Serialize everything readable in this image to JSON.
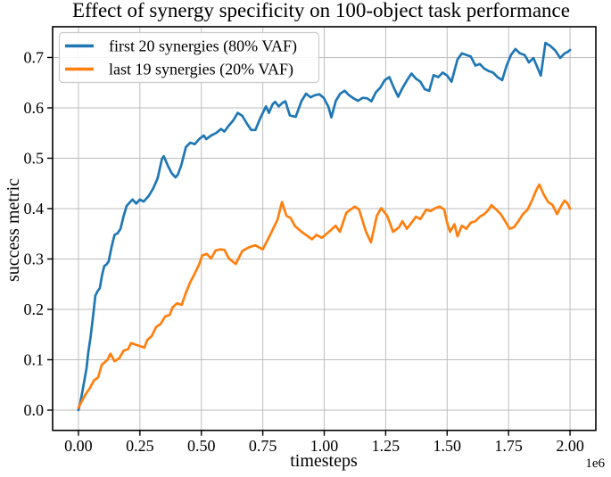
{
  "chart_data": {
    "type": "line",
    "title": "Effect of synergy specificity on 100-object task performance",
    "xlabel": "timesteps",
    "ylabel": "success metric",
    "x_offset_label": "1e6",
    "x_units": "timesteps (values shown in multiples of 1e6)",
    "xlim": [
      -0.105,
      2.105
    ],
    "ylim": [
      -0.0402,
      0.761
    ],
    "grid": true,
    "legend_position": "upper left",
    "colors": {
      "series_blue": "#1f77b4",
      "series_orange": "#ff7f0e",
      "grid": "#bdbdbd",
      "spine": "#000000",
      "legend_border": "#cccccc",
      "background": "#ffffff"
    },
    "xticks": [
      0,
      0.25,
      0.5,
      0.75,
      1.0,
      1.25,
      1.5,
      1.75,
      2.0
    ],
    "xtick_labels": [
      "0.00",
      "0.25",
      "0.50",
      "0.75",
      "1.00",
      "1.25",
      "1.50",
      "1.75",
      "2.00"
    ],
    "yticks": [
      0,
      0.1,
      0.2,
      0.3,
      0.4,
      0.5,
      0.6,
      0.7
    ],
    "ytick_labels": [
      "0.0",
      "0.1",
      "0.2",
      "0.3",
      "0.4",
      "0.5",
      "0.6",
      "0.7"
    ],
    "series": [
      {
        "name": "first 20 synergies (80% VAF)",
        "color": "#1f77b4",
        "x": [
          0,
          0.008,
          0.02,
          0.033,
          0.04,
          0.05,
          0.06,
          0.069,
          0.078,
          0.087,
          0.096,
          0.105,
          0.114,
          0.123,
          0.135,
          0.147,
          0.159,
          0.171,
          0.183,
          0.196,
          0.208,
          0.22,
          0.235,
          0.25,
          0.265,
          0.286,
          0.304,
          0.322,
          0.34,
          0.347,
          0.365,
          0.38,
          0.395,
          0.405,
          0.419,
          0.437,
          0.455,
          0.473,
          0.491,
          0.51,
          0.52,
          0.54,
          0.56,
          0.58,
          0.594,
          0.612,
          0.63,
          0.648,
          0.667,
          0.685,
          0.703,
          0.72,
          0.74,
          0.763,
          0.775,
          0.79,
          0.8,
          0.815,
          0.83,
          0.842,
          0.86,
          0.884,
          0.908,
          0.926,
          0.944,
          0.962,
          0.98,
          0.998,
          1.017,
          1.029,
          1.047,
          1.065,
          1.083,
          1.101,
          1.119,
          1.137,
          1.156,
          1.174,
          1.192,
          1.21,
          1.228,
          1.246,
          1.265,
          1.283,
          1.301,
          1.319,
          1.337,
          1.355,
          1.373,
          1.391,
          1.409,
          1.427,
          1.445,
          1.464,
          1.482,
          1.5,
          1.518,
          1.542,
          1.56,
          1.578,
          1.596,
          1.615,
          1.633,
          1.651,
          1.669,
          1.687,
          1.705,
          1.724,
          1.742,
          1.76,
          1.778,
          1.796,
          1.815,
          1.833,
          1.851,
          1.869,
          1.881,
          1.9,
          1.92,
          1.94,
          1.96,
          1.978,
          1.99,
          2.0
        ],
        "y": [
          0,
          0.015,
          0.047,
          0.083,
          0.115,
          0.147,
          0.189,
          0.227,
          0.236,
          0.242,
          0.268,
          0.286,
          0.289,
          0.295,
          0.324,
          0.348,
          0.351,
          0.36,
          0.384,
          0.405,
          0.412,
          0.418,
          0.41,
          0.418,
          0.414,
          0.425,
          0.44,
          0.46,
          0.499,
          0.504,
          0.484,
          0.47,
          0.462,
          0.468,
          0.487,
          0.522,
          0.531,
          0.528,
          0.538,
          0.545,
          0.538,
          0.545,
          0.55,
          0.558,
          0.553,
          0.565,
          0.575,
          0.59,
          0.584,
          0.569,
          0.556,
          0.556,
          0.58,
          0.603,
          0.59,
          0.607,
          0.612,
          0.603,
          0.61,
          0.613,
          0.585,
          0.582,
          0.614,
          0.628,
          0.621,
          0.625,
          0.627,
          0.62,
          0.602,
          0.581,
          0.614,
          0.628,
          0.634,
          0.625,
          0.619,
          0.614,
          0.62,
          0.619,
          0.613,
          0.631,
          0.64,
          0.655,
          0.661,
          0.64,
          0.622,
          0.64,
          0.655,
          0.668,
          0.658,
          0.652,
          0.637,
          0.634,
          0.665,
          0.661,
          0.67,
          0.664,
          0.652,
          0.696,
          0.708,
          0.705,
          0.702,
          0.684,
          0.687,
          0.678,
          0.673,
          0.67,
          0.661,
          0.655,
          0.684,
          0.705,
          0.717,
          0.708,
          0.705,
          0.69,
          0.699,
          0.678,
          0.664,
          0.729,
          0.723,
          0.714,
          0.699,
          0.708,
          0.711,
          0.715
        ]
      },
      {
        "name": "last 19 synergies (20% VAF)",
        "color": "#ff7f0e",
        "x": [
          0,
          0.008,
          0.027,
          0.047,
          0.063,
          0.08,
          0.095,
          0.118,
          0.13,
          0.147,
          0.166,
          0.184,
          0.202,
          0.214,
          0.232,
          0.25,
          0.268,
          0.28,
          0.298,
          0.316,
          0.334,
          0.353,
          0.371,
          0.383,
          0.401,
          0.42,
          0.437,
          0.455,
          0.473,
          0.491,
          0.504,
          0.522,
          0.54,
          0.558,
          0.576,
          0.594,
          0.612,
          0.64,
          0.667,
          0.697,
          0.72,
          0.75,
          0.78,
          0.81,
          0.828,
          0.846,
          0.864,
          0.88,
          0.905,
          0.925,
          0.95,
          0.968,
          0.99,
          1.01,
          1.046,
          1.064,
          1.09,
          1.124,
          1.142,
          1.17,
          1.19,
          1.214,
          1.232,
          1.256,
          1.28,
          1.304,
          1.318,
          1.336,
          1.355,
          1.373,
          1.391,
          1.415,
          1.433,
          1.452,
          1.47,
          1.488,
          1.5,
          1.512,
          1.53,
          1.542,
          1.56,
          1.578,
          1.596,
          1.615,
          1.633,
          1.651,
          1.669,
          1.68,
          1.7,
          1.718,
          1.736,
          1.754,
          1.772,
          1.79,
          1.808,
          1.827,
          1.845,
          1.863,
          1.875,
          1.893,
          1.911,
          1.929,
          1.947,
          1.966,
          1.978,
          1.99,
          2.0
        ],
        "y": [
          0.005,
          0.012,
          0.03,
          0.044,
          0.059,
          0.065,
          0.09,
          0.1,
          0.112,
          0.097,
          0.103,
          0.118,
          0.121,
          0.133,
          0.13,
          0.127,
          0.124,
          0.139,
          0.147,
          0.165,
          0.171,
          0.186,
          0.189,
          0.204,
          0.212,
          0.209,
          0.233,
          0.254,
          0.271,
          0.289,
          0.307,
          0.31,
          0.301,
          0.317,
          0.319,
          0.318,
          0.301,
          0.29,
          0.316,
          0.324,
          0.327,
          0.319,
          0.348,
          0.378,
          0.413,
          0.386,
          0.381,
          0.366,
          0.355,
          0.348,
          0.339,
          0.348,
          0.342,
          0.35,
          0.366,
          0.354,
          0.392,
          0.404,
          0.398,
          0.354,
          0.333,
          0.386,
          0.401,
          0.386,
          0.354,
          0.363,
          0.375,
          0.36,
          0.372,
          0.384,
          0.379,
          0.398,
          0.395,
          0.401,
          0.404,
          0.398,
          0.372,
          0.354,
          0.369,
          0.345,
          0.366,
          0.36,
          0.372,
          0.375,
          0.384,
          0.389,
          0.398,
          0.407,
          0.398,
          0.389,
          0.375,
          0.36,
          0.363,
          0.375,
          0.389,
          0.398,
          0.416,
          0.437,
          0.448,
          0.428,
          0.413,
          0.407,
          0.389,
          0.407,
          0.416,
          0.41,
          0.4
        ]
      }
    ]
  }
}
